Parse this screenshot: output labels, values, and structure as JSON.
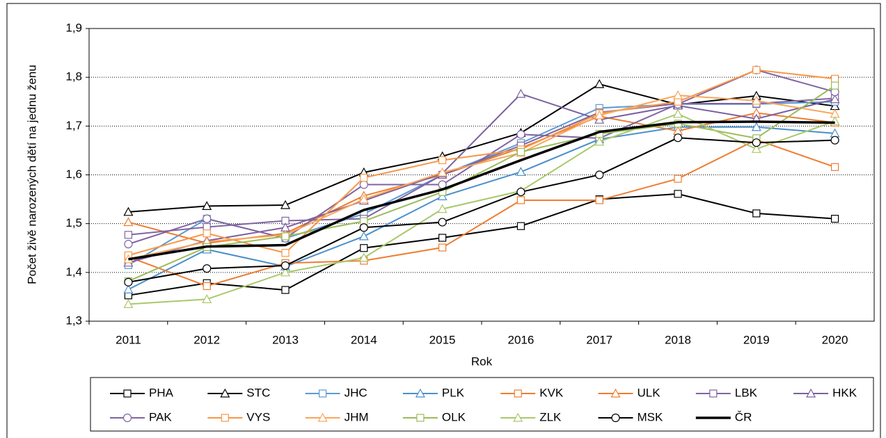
{
  "chart_data": {
    "type": "line",
    "xlabel": "Rok",
    "ylabel": "Počet živě narozených dětí na jednu ženu",
    "categories": [
      "2011",
      "2012",
      "2013",
      "2014",
      "2015",
      "2016",
      "2017",
      "2018",
      "2019",
      "2020"
    ],
    "ylim": [
      1.3,
      1.9
    ],
    "yticks": [
      {
        "value": 1.3,
        "label": "1,3"
      },
      {
        "value": 1.4,
        "label": "1,4"
      },
      {
        "value": 1.5,
        "label": "1,5"
      },
      {
        "value": 1.6,
        "label": "1,6"
      },
      {
        "value": 1.7,
        "label": "1,7"
      },
      {
        "value": 1.8,
        "label": "1,8"
      },
      {
        "value": 1.9,
        "label": "1,9"
      }
    ],
    "grid": true,
    "legend": "bottom",
    "series": [
      {
        "name": "PHA",
        "color": "#000000",
        "marker": "square",
        "values": [
          1.353,
          1.378,
          1.364,
          1.45,
          1.471,
          1.495,
          1.55,
          1.561,
          1.521,
          1.51
        ]
      },
      {
        "name": "STC",
        "color": "#000000",
        "marker": "triangle",
        "values": [
          1.524,
          1.536,
          1.538,
          1.605,
          1.638,
          1.686,
          1.786,
          1.744,
          1.762,
          1.741
        ]
      },
      {
        "name": "JHC",
        "color": "#5b9bd5",
        "marker": "square",
        "values": [
          1.415,
          1.51,
          1.47,
          1.52,
          1.6,
          1.665,
          1.737,
          1.745,
          1.745,
          1.75
        ]
      },
      {
        "name": "PLK",
        "color": "#4a8fcc",
        "marker": "triangle",
        "values": [
          1.365,
          1.447,
          1.412,
          1.474,
          1.556,
          1.606,
          1.673,
          1.698,
          1.698,
          1.685
        ]
      },
      {
        "name": "KVK",
        "color": "#ed7d31",
        "marker": "square",
        "values": [
          1.432,
          1.372,
          1.419,
          1.424,
          1.451,
          1.548,
          1.548,
          1.592,
          1.672,
          1.616
        ]
      },
      {
        "name": "ULK",
        "color": "#ed7d31",
        "marker": "triangle",
        "values": [
          1.503,
          1.46,
          1.48,
          1.557,
          1.6,
          1.655,
          1.72,
          1.69,
          1.727,
          1.707
        ]
      },
      {
        "name": "LBK",
        "color": "#8064a2",
        "marker": "square",
        "values": [
          1.477,
          1.493,
          1.506,
          1.51,
          1.6,
          1.66,
          1.728,
          1.746,
          1.746,
          1.757
        ]
      },
      {
        "name": "HKK",
        "color": "#7a5fa0",
        "marker": "triangle",
        "values": [
          1.42,
          1.465,
          1.492,
          1.547,
          1.603,
          1.766,
          1.713,
          1.742,
          1.715,
          1.755
        ]
      },
      {
        "name": "PAK",
        "color": "#8064a2",
        "marker": "circle",
        "values": [
          1.458,
          1.51,
          1.47,
          1.58,
          1.58,
          1.683,
          1.675,
          1.745,
          1.815,
          1.77
        ]
      },
      {
        "name": "VYS",
        "color": "#f79646",
        "marker": "square",
        "values": [
          1.435,
          1.48,
          1.44,
          1.594,
          1.63,
          1.652,
          1.726,
          1.75,
          1.815,
          1.797
        ]
      },
      {
        "name": "JHM",
        "color": "#f9a65a",
        "marker": "triangle",
        "values": [
          1.427,
          1.463,
          1.477,
          1.55,
          1.605,
          1.645,
          1.722,
          1.763,
          1.752,
          1.725
        ]
      },
      {
        "name": "OLK",
        "color": "#9bbb59",
        "marker": "square",
        "values": [
          1.382,
          1.452,
          1.474,
          1.505,
          1.565,
          1.647,
          1.684,
          1.705,
          1.675,
          1.783
        ]
      },
      {
        "name": "ZLK",
        "color": "#a9c86a",
        "marker": "triangle",
        "values": [
          1.335,
          1.345,
          1.4,
          1.43,
          1.53,
          1.567,
          1.668,
          1.725,
          1.653,
          1.71
        ]
      },
      {
        "name": "MSK",
        "color": "#000000",
        "marker": "circle",
        "values": [
          1.38,
          1.408,
          1.414,
          1.492,
          1.503,
          1.565,
          1.6,
          1.676,
          1.666,
          1.671
        ]
      },
      {
        "name": "ČR",
        "color": "#000000",
        "marker": "none",
        "values": [
          1.427,
          1.453,
          1.456,
          1.528,
          1.57,
          1.63,
          1.688,
          1.708,
          1.709,
          1.707
        ]
      }
    ]
  }
}
